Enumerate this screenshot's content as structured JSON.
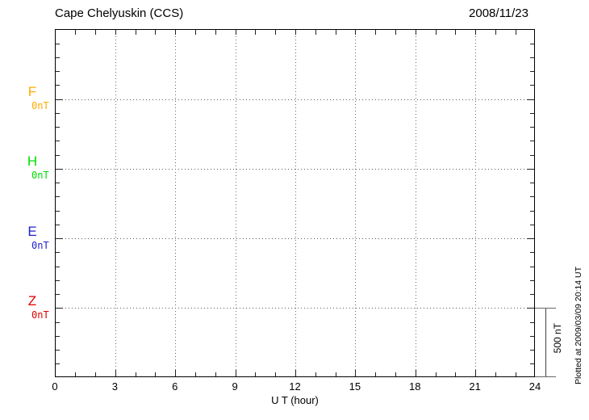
{
  "header": {
    "station": "Cape Chelyuskin (CCS)",
    "date": "2008/11/23"
  },
  "components": [
    {
      "label": "F",
      "unit_label": "0nT",
      "color": "#FFAA00"
    },
    {
      "label": "H",
      "unit_label": "0nT",
      "color": "#00DD00"
    },
    {
      "label": "E",
      "unit_label": "0nT",
      "color": "#2222CC"
    },
    {
      "label": "Z",
      "unit_label": "0nT",
      "color": "#E00000"
    }
  ],
  "x_axis": {
    "label": "U T (hour)",
    "ticks": [
      "0",
      "3",
      "6",
      "9",
      "12",
      "15",
      "18",
      "21",
      "24"
    ],
    "min": 0,
    "max": 24,
    "minor_step": 1,
    "major_step": 3
  },
  "scale_bar": {
    "label": "500 nT"
  },
  "footer_note": "Plotted at 2009/03/09 20:14 UT",
  "chart_data": {
    "type": "line",
    "title": "Cape Chelyuskin (CCS)",
    "date": "2008/11/23",
    "xlabel": "U T (hour)",
    "x_range_hours": [
      0,
      24
    ],
    "x_major_tick_step_hours": 3,
    "x_minor_tick_step_hours": 1,
    "y_scale_bar_nT": 500,
    "y_minor_tick_nT": 100,
    "series": [
      {
        "name": "F",
        "baseline_label": "0nT",
        "baseline_nT": 0,
        "color": "#FFAA00",
        "values": []
      },
      {
        "name": "H",
        "baseline_label": "0nT",
        "baseline_nT": 0,
        "color": "#00DD00",
        "values": []
      },
      {
        "name": "E",
        "baseline_label": "0nT",
        "baseline_nT": 0,
        "color": "#2222CC",
        "values": []
      },
      {
        "name": "Z",
        "baseline_label": "0nT",
        "baseline_nT": 0,
        "color": "#E00000",
        "values": []
      }
    ],
    "grid": "dotted vertical lines every 3 hours; dotted horizontal line at each component 0 nT baseline",
    "legend_position": "left margin, one colored label per component stacked vertically",
    "note": "no data traces plotted (empty magnetogram for this day)"
  }
}
